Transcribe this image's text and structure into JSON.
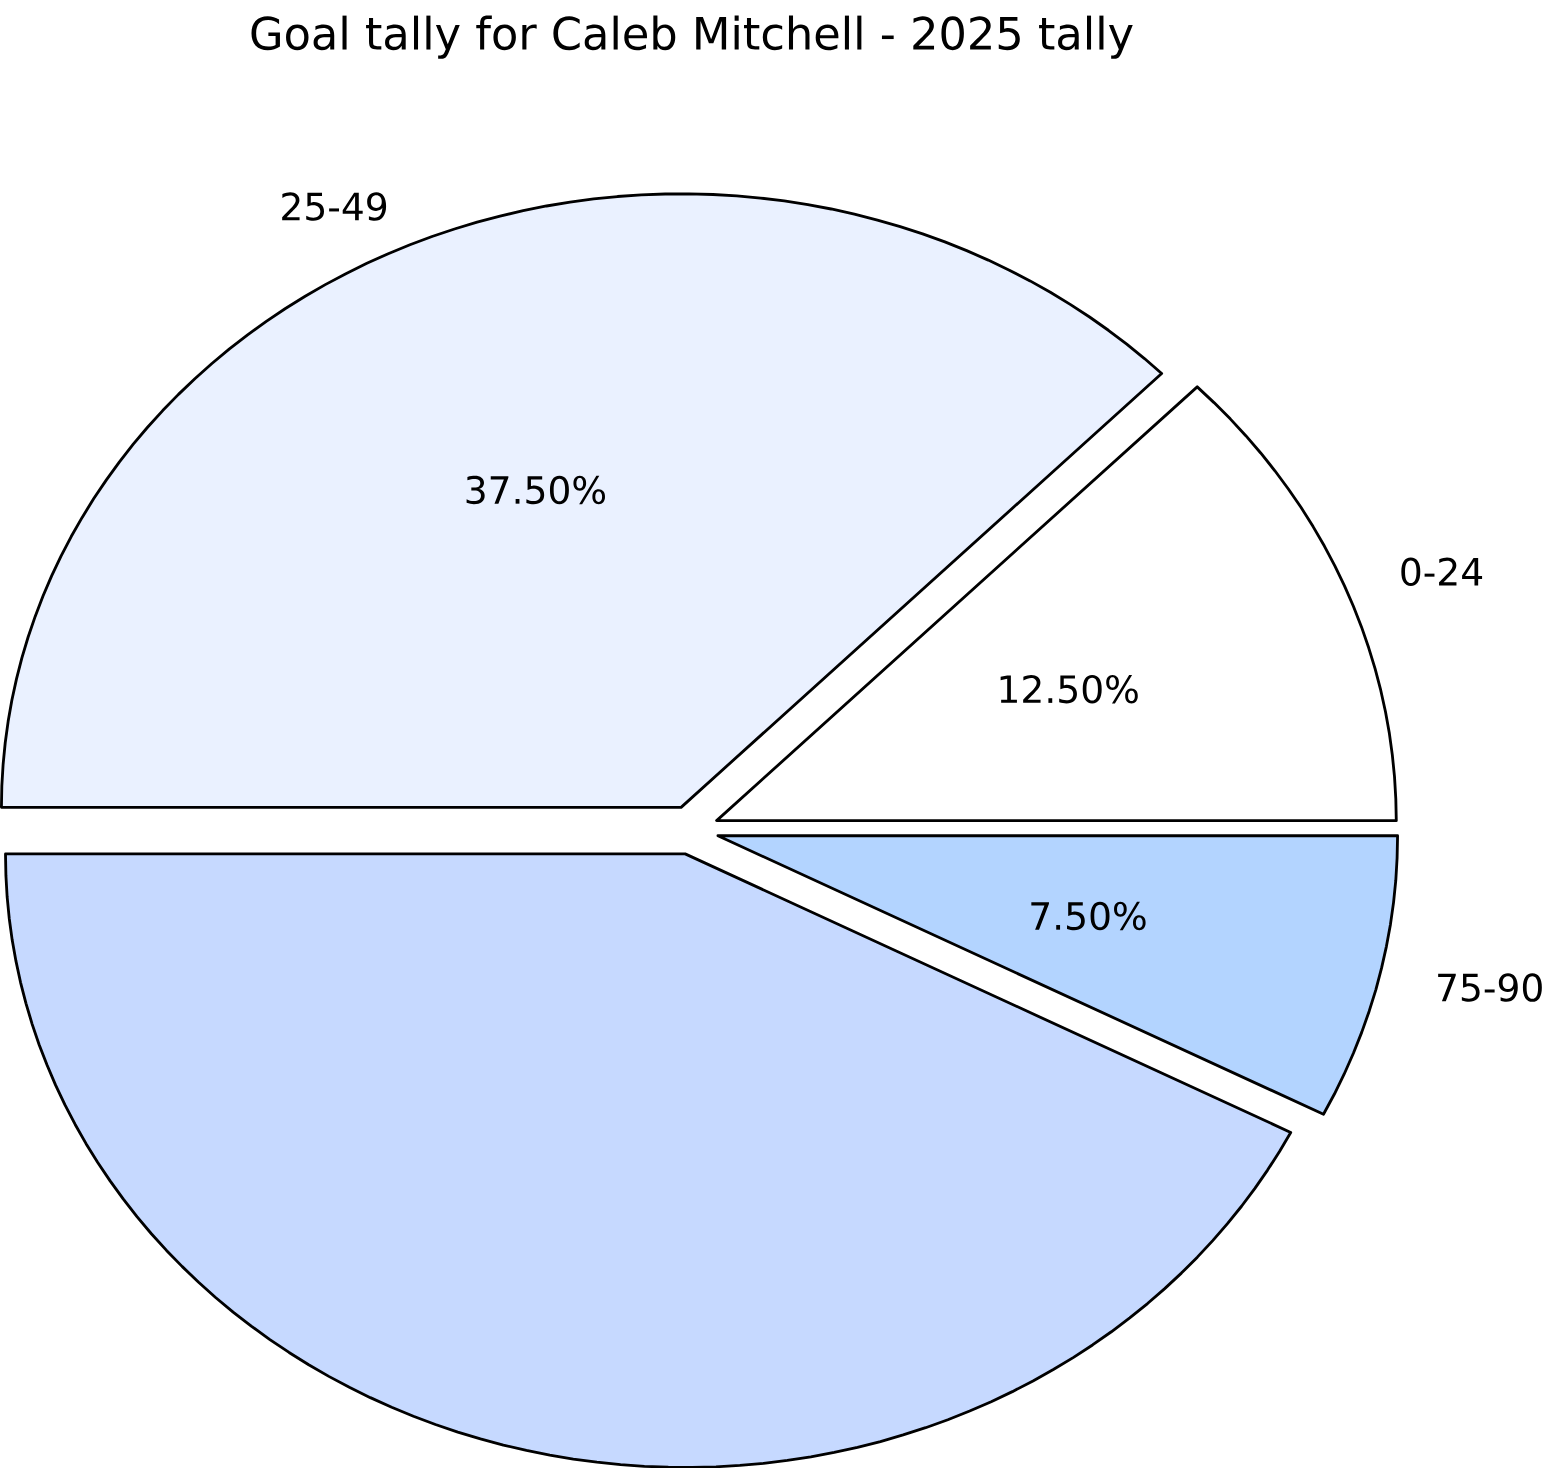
{
  "chart_data": {
    "type": "pie",
    "title": "Goal tally for Caleb Mitchell - 2025 tally",
    "categories": [
      "0-24",
      "25-49",
      null,
      "75-90"
    ],
    "values": [
      12.5,
      37.5,
      42.5,
      7.5
    ],
    "colors": [
      "#ffffff",
      "#eaf1ff",
      "#c6d9ff",
      "#b3d4ff"
    ],
    "value_labels": [
      "12.50%",
      "37.50%",
      null,
      "7.50%"
    ]
  }
}
